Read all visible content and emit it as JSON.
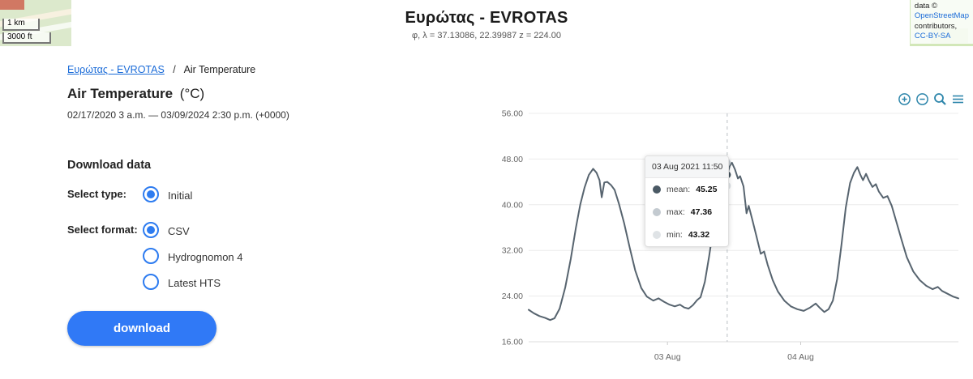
{
  "topbar": {
    "title": "Ευρώτας - EVROTAS",
    "coordinates": "φ, λ = 37.13086, 22.39987 z = 224.00",
    "map_scale": {
      "km": "1 km",
      "ft": "3000 ft"
    },
    "attribution": {
      "prefix": "data ©",
      "osm_link": "OpenStreetMap",
      "suffix": "contributors,",
      "license_link": "CC-BY-SA"
    }
  },
  "breadcrumb": {
    "station_link": "Ευρώτας - EVROTAS",
    "separator": "/",
    "current": "Air Temperature"
  },
  "panel": {
    "title": "Air Temperature",
    "unit": "(°C)",
    "date_range": "02/17/2020 3 a.m. — 03/09/2024 2:30 p.m. (+0000)",
    "download_heading": "Download data",
    "select_type_label": "Select type:",
    "select_format_label": "Select format:",
    "type_options": [
      {
        "label": "Initial",
        "selected": true
      }
    ],
    "format_options": [
      {
        "label": "CSV",
        "selected": true
      },
      {
        "label": "Hydrognomon 4",
        "selected": false
      },
      {
        "label": "Latest HTS",
        "selected": false
      }
    ],
    "download_button": "download",
    "accent_color": "#2e7cf0"
  },
  "chart": {
    "toolbar_icons": [
      "zoom-in-icon",
      "zoom-out-icon",
      "zoom-window-icon",
      "chart-menu-icon"
    ],
    "toolbar_color": "#2e86ab",
    "tooltip": {
      "timestamp": "03 Aug 2021 11:50",
      "rows": [
        {
          "label": "mean:",
          "value": "45.25",
          "dot_color": "#4a5964"
        },
        {
          "label": "max:",
          "value": "47.36",
          "dot_color": "#c3cad0"
        },
        {
          "label": "min:",
          "value": "43.32",
          "dot_color": "#dfe3e6"
        }
      ]
    }
  },
  "chart_data": {
    "type": "line",
    "title": "Air Temperature (°C)",
    "ylim": [
      16,
      56
    ],
    "yticks": [
      56,
      48,
      40,
      32,
      24,
      16
    ],
    "ytick_labels": [
      "56.00",
      "48.00",
      "40.00",
      "32.00",
      "24.00",
      "16.00"
    ],
    "xticks": [
      0.323,
      0.633
    ],
    "xtick_labels": [
      "03 Aug",
      "04 Aug"
    ],
    "grid": true,
    "line_color": "#57646f",
    "hover": {
      "x": 0.462,
      "timestamp": "03 Aug 2021 11:50",
      "dots": [
        {
          "name": "min",
          "value": 43.32,
          "color": "#dfe3e6"
        },
        {
          "name": "max",
          "value": 47.36,
          "color": "#c3cad0"
        },
        {
          "name": "mean",
          "value": 45.25,
          "color": "#44525d"
        }
      ]
    },
    "series": [
      {
        "name": "mean",
        "x": [
          0.0,
          0.012,
          0.025,
          0.038,
          0.05,
          0.06,
          0.072,
          0.085,
          0.098,
          0.11,
          0.12,
          0.13,
          0.14,
          0.15,
          0.158,
          0.165,
          0.17,
          0.176,
          0.183,
          0.192,
          0.2,
          0.21,
          0.222,
          0.235,
          0.248,
          0.262,
          0.275,
          0.29,
          0.302,
          0.315,
          0.328,
          0.34,
          0.352,
          0.362,
          0.372,
          0.382,
          0.392,
          0.4,
          0.41,
          0.42,
          0.43,
          0.44,
          0.45,
          0.458,
          0.462,
          0.468,
          0.473,
          0.48,
          0.487,
          0.492,
          0.5,
          0.507,
          0.512,
          0.52,
          0.53,
          0.54,
          0.548,
          0.556,
          0.568,
          0.58,
          0.595,
          0.61,
          0.625,
          0.64,
          0.655,
          0.668,
          0.678,
          0.688,
          0.698,
          0.708,
          0.718,
          0.728,
          0.738,
          0.748,
          0.757,
          0.765,
          0.772,
          0.778,
          0.785,
          0.792,
          0.8,
          0.808,
          0.815,
          0.825,
          0.835,
          0.845,
          0.855,
          0.868,
          0.88,
          0.895,
          0.91,
          0.925,
          0.94,
          0.952,
          0.962,
          0.975,
          0.988,
          1.0
        ],
        "values": [
          21.6,
          21.0,
          20.5,
          20.2,
          19.8,
          20.1,
          21.8,
          25.5,
          30.5,
          36.0,
          40.0,
          43.0,
          45.2,
          46.3,
          45.6,
          44.3,
          41.3,
          43.9,
          44.0,
          43.4,
          42.6,
          40.2,
          36.8,
          32.5,
          28.5,
          25.4,
          23.9,
          23.2,
          23.6,
          23.0,
          22.5,
          22.2,
          22.5,
          22.0,
          21.8,
          22.4,
          23.3,
          23.8,
          26.5,
          31.0,
          36.0,
          40.5,
          43.3,
          44.8,
          45.25,
          46.8,
          47.36,
          46.2,
          44.6,
          45.0,
          43.2,
          38.5,
          39.8,
          37.5,
          34.5,
          31.4,
          31.8,
          29.5,
          26.8,
          24.8,
          23.2,
          22.2,
          21.7,
          21.4,
          22.0,
          22.7,
          21.9,
          21.2,
          21.7,
          23.2,
          27.0,
          33.0,
          39.5,
          43.8,
          45.6,
          46.6,
          45.2,
          44.3,
          45.4,
          44.2,
          43.1,
          43.6,
          42.3,
          41.2,
          41.5,
          39.8,
          37.2,
          33.8,
          30.8,
          28.3,
          26.8,
          25.8,
          25.2,
          25.6,
          24.9,
          24.4,
          23.9,
          23.6
        ]
      }
    ]
  }
}
